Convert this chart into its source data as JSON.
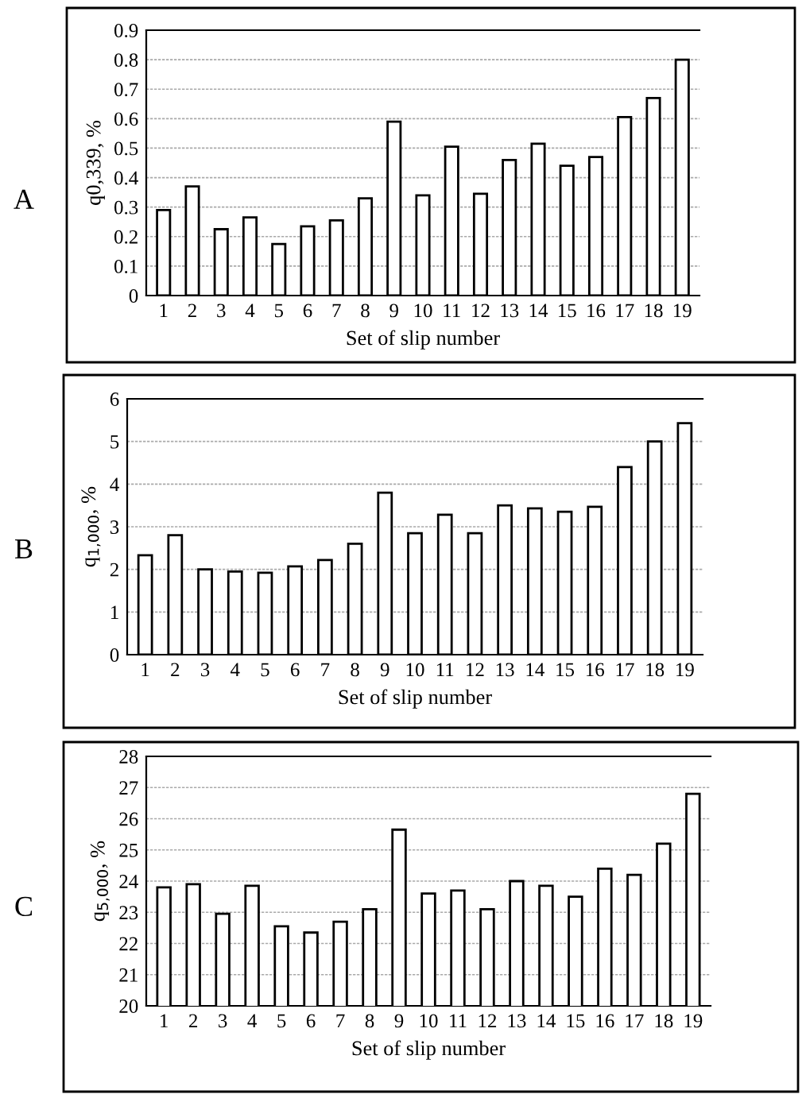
{
  "chart_data": [
    {
      "type": "bar",
      "annotations": [
        "A"
      ],
      "xlabel": "Set of slip number",
      "ylabel": "q0,339, %",
      "categories": [
        "1",
        "2",
        "3",
        "4",
        "5",
        "6",
        "7",
        "8",
        "9",
        "10",
        "11",
        "12",
        "13",
        "14",
        "15",
        "16",
        "17",
        "18",
        "19"
      ],
      "values": [
        0.29,
        0.37,
        0.225,
        0.265,
        0.175,
        0.235,
        0.255,
        0.33,
        0.59,
        0.34,
        0.505,
        0.345,
        0.46,
        0.515,
        0.44,
        0.47,
        0.605,
        0.67,
        0.8
      ],
      "color": "#ffffff",
      "ylim": [
        0,
        0.9
      ],
      "yticks": [
        0,
        0.1,
        0.2,
        0.3,
        0.4,
        0.5,
        0.6,
        0.7,
        0.8,
        0.9
      ],
      "grid": "y"
    },
    {
      "type": "bar",
      "annotations": [
        "B"
      ],
      "xlabel": "Set of slip number",
      "ylabel": "q$_{1,000}$, %",
      "categories": [
        "1",
        "2",
        "3",
        "4",
        "5",
        "6",
        "7",
        "8",
        "9",
        "10",
        "11",
        "12",
        "13",
        "14",
        "15",
        "16",
        "17",
        "18",
        "19"
      ],
      "values": [
        2.33,
        2.8,
        2.0,
        1.95,
        1.92,
        2.07,
        2.22,
        2.6,
        3.8,
        2.85,
        3.28,
        2.85,
        3.5,
        3.43,
        3.35,
        3.47,
        4.4,
        5.0,
        5.43
      ],
      "color": "#ffffff",
      "ylim": [
        0,
        6
      ],
      "yticks": [
        0,
        1,
        2,
        3,
        4,
        5,
        6
      ],
      "grid": "y"
    },
    {
      "type": "bar",
      "annotations": [
        "C"
      ],
      "xlabel": "Set of slip number",
      "ylabel": "q$_{5,000}$, %",
      "categories": [
        "1",
        "2",
        "3",
        "4",
        "5",
        "6",
        "7",
        "8",
        "9",
        "10",
        "11",
        "12",
        "13",
        "14",
        "15",
        "16",
        "17",
        "18",
        "19"
      ],
      "values": [
        23.8,
        23.9,
        22.95,
        23.85,
        22.55,
        22.35,
        22.7,
        23.1,
        25.65,
        23.6,
        23.7,
        23.1,
        24.0,
        23.85,
        23.5,
        24.4,
        24.2,
        25.2,
        26.8
      ],
      "color": "#ffffff",
      "ylim": [
        20,
        28
      ],
      "yticks": [
        20,
        21,
        22,
        23,
        24,
        25,
        26,
        27,
        28
      ],
      "grid": "y"
    }
  ]
}
